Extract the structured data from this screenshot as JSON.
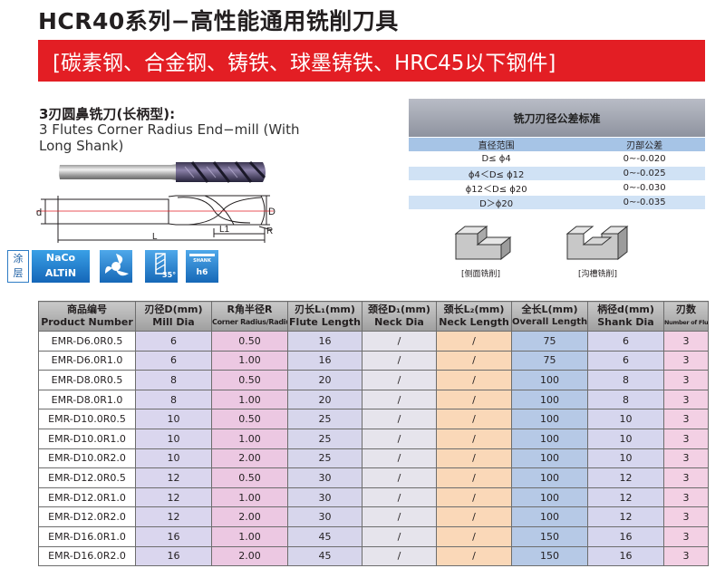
{
  "title": "HCR40系列−高性能通用铣削刀具",
  "banner": "[碳素钢、合金钢、铸铁、球墨铸铁、HRC45以下钢件]",
  "subtitle_cn": "3刃圆鼻铣刀(长柄型):",
  "subtitle_en": "3 Flutes Corner Radius End−mill (With Long Shank)",
  "drawing": {
    "label_d": "d",
    "label_D": "D",
    "label_L1": "L1",
    "label_L": "L",
    "label_R": "R"
  },
  "tolerance": {
    "title": "铣刀刃径公差标准",
    "col1": "直径范围",
    "col2": "刃部公差",
    "rows": [
      [
        "D≤ ϕ4",
        "0~-0.020"
      ],
      [
        "ϕ4＜D≤ ϕ12",
        "0~-0.025"
      ],
      [
        "ϕ12＜D≤ ϕ20",
        "0~-0.030"
      ],
      [
        "D＞ϕ20",
        "0~-0.035"
      ]
    ]
  },
  "labels": {
    "side": "[侧面铣削]",
    "slot": "[沟槽铣削]"
  },
  "coating": {
    "label_1": "涂",
    "label_2": "层",
    "name_1": "NaCo",
    "name_2": "ALTiN"
  },
  "icons": {
    "helix_angle": "35°",
    "shank_label": "SHANK",
    "shank_tol": "h6"
  },
  "table": {
    "headers": [
      {
        "cn": "商品编号",
        "en": "Product Number"
      },
      {
        "cn": "刃径D(mm)",
        "en": "Mill Dia"
      },
      {
        "cn": "R角半径R",
        "en": "Corner Radius/Radius"
      },
      {
        "cn": "刃长L₁(mm)",
        "en": "Flute Length"
      },
      {
        "cn": "颈径D₁(mm)",
        "en": "Neck Dia"
      },
      {
        "cn": "颈长L₂(mm)",
        "en": "Neck Length"
      },
      {
        "cn": "全长L(mm)",
        "en": "Overall Length"
      },
      {
        "cn": "柄径d(mm)",
        "en": "Shank Dia"
      },
      {
        "cn": "刃数",
        "en": "Number of Flute"
      }
    ],
    "rows": [
      [
        "EMR-D6.0R0.5",
        "6",
        "0.50",
        "16",
        "/",
        "/",
        "75",
        "6",
        "3"
      ],
      [
        "EMR-D6.0R1.0",
        "6",
        "1.00",
        "16",
        "/",
        "/",
        "75",
        "6",
        "3"
      ],
      [
        "EMR-D8.0R0.5",
        "8",
        "0.50",
        "20",
        "/",
        "/",
        "100",
        "8",
        "3"
      ],
      [
        "EMR-D8.0R1.0",
        "8",
        "1.00",
        "20",
        "/",
        "/",
        "100",
        "8",
        "3"
      ],
      [
        "EMR-D10.0R0.5",
        "10",
        "0.50",
        "25",
        "/",
        "/",
        "100",
        "10",
        "3"
      ],
      [
        "EMR-D10.0R1.0",
        "10",
        "1.00",
        "25",
        "/",
        "/",
        "100",
        "10",
        "3"
      ],
      [
        "EMR-D10.0R2.0",
        "10",
        "2.00",
        "25",
        "/",
        "/",
        "100",
        "10",
        "3"
      ],
      [
        "EMR-D12.0R0.5",
        "12",
        "0.50",
        "30",
        "/",
        "/",
        "100",
        "12",
        "3"
      ],
      [
        "EMR-D12.0R1.0",
        "12",
        "1.00",
        "30",
        "/",
        "/",
        "100",
        "12",
        "3"
      ],
      [
        "EMR-D12.0R2.0",
        "12",
        "2.00",
        "30",
        "/",
        "/",
        "100",
        "12",
        "3"
      ],
      [
        "EMR-D16.0R1.0",
        "16",
        "1.00",
        "45",
        "/",
        "/",
        "150",
        "16",
        "3"
      ],
      [
        "EMR-D16.0R2.0",
        "16",
        "2.00",
        "45",
        "/",
        "/",
        "150",
        "16",
        "3"
      ]
    ]
  }
}
